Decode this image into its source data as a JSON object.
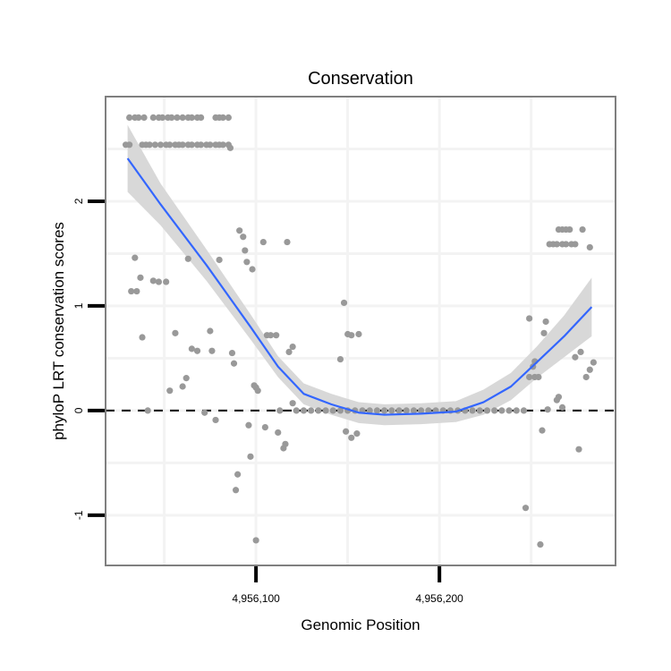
{
  "chart_data": {
    "type": "scatter",
    "title": "Conservation",
    "xlabel": "Genomic Position",
    "ylabel": "phyloP LRT conservation scores",
    "xlim": [
      4956018,
      4956296
    ],
    "ylim": [
      -1.48,
      3.0
    ],
    "x_ticks": [
      {
        "value": 4956100,
        "label": "4,956,100"
      },
      {
        "value": 4956200,
        "label": "4,956,200"
      }
    ],
    "y_ticks": [
      {
        "value": -1,
        "label": "-1"
      },
      {
        "value": 0,
        "label": "0"
      },
      {
        "value": 1,
        "label": "1"
      },
      {
        "value": 2,
        "label": "2"
      }
    ],
    "grid": true,
    "reference_line": {
      "y": 0,
      "style": "dashed"
    },
    "colors": {
      "points": "#999999",
      "fit": "#3366ff",
      "ribbon": "#d6d6d6",
      "border": "#7f7f7f",
      "grid": "#f3f3f3"
    },
    "points": [
      [
        4956031,
        2.8
      ],
      [
        4956034,
        2.8
      ],
      [
        4956036,
        2.8
      ],
      [
        4956039,
        2.8
      ],
      [
        4956044,
        2.8
      ],
      [
        4956047,
        2.8
      ],
      [
        4956049,
        2.8
      ],
      [
        4956052,
        2.8
      ],
      [
        4956054,
        2.8
      ],
      [
        4956057,
        2.8
      ],
      [
        4956060,
        2.8
      ],
      [
        4956063,
        2.8
      ],
      [
        4956065,
        2.8
      ],
      [
        4956068,
        2.8
      ],
      [
        4956070,
        2.8
      ],
      [
        4956078,
        2.8
      ],
      [
        4956080,
        2.8
      ],
      [
        4956082,
        2.8
      ],
      [
        4956085,
        2.8
      ],
      [
        4956029,
        2.54
      ],
      [
        4956031,
        2.54
      ],
      [
        4956038,
        2.54
      ],
      [
        4956040,
        2.54
      ],
      [
        4956042,
        2.54
      ],
      [
        4956045,
        2.54
      ],
      [
        4956048,
        2.54
      ],
      [
        4956051,
        2.54
      ],
      [
        4956053,
        2.54
      ],
      [
        4956056,
        2.54
      ],
      [
        4956058,
        2.54
      ],
      [
        4956060,
        2.54
      ],
      [
        4956063,
        2.54
      ],
      [
        4956065,
        2.54
      ],
      [
        4956068,
        2.54
      ],
      [
        4956070,
        2.54
      ],
      [
        4956073,
        2.54
      ],
      [
        4956075,
        2.54
      ],
      [
        4956078,
        2.54
      ],
      [
        4956080,
        2.54
      ],
      [
        4956082,
        2.54
      ],
      [
        4956085,
        2.54
      ],
      [
        4956086,
        2.51
      ],
      [
        4956034,
        1.46
      ],
      [
        4956037,
        1.27
      ],
      [
        4956032,
        1.14
      ],
      [
        4956035,
        1.14
      ],
      [
        4956044,
        1.24
      ],
      [
        4956047,
        1.23
      ],
      [
        4956051,
        1.23
      ],
      [
        4956038,
        0.7
      ],
      [
        4956041,
        0.0
      ],
      [
        4956056,
        0.74
      ],
      [
        4956063,
        1.45
      ],
      [
        4956080,
        1.44
      ],
      [
        4956075,
        0.76
      ],
      [
        4956053,
        0.19
      ],
      [
        4956060,
        0.23
      ],
      [
        4956062,
        0.31
      ],
      [
        4956065,
        0.59
      ],
      [
        4956068,
        0.57
      ],
      [
        4956076,
        0.57
      ],
      [
        4956072,
        -0.02
      ],
      [
        4956078,
        -0.09
      ],
      [
        4956087,
        0.55
      ],
      [
        4956088,
        0.45
      ],
      [
        4956091,
        1.72
      ],
      [
        4956093,
        1.66
      ],
      [
        4956094,
        1.53
      ],
      [
        4956095,
        1.42
      ],
      [
        4956098,
        1.35
      ],
      [
        4956104,
        1.61
      ],
      [
        4956117,
        1.61
      ],
      [
        4956096,
        -0.14
      ],
      [
        4956100,
        0.22
      ],
      [
        4956101,
        0.19
      ],
      [
        4956099,
        0.24
      ],
      [
        4956105,
        -0.16
      ],
      [
        4956112,
        -0.21
      ],
      [
        4956115,
        -0.36
      ],
      [
        4956116,
        -0.32
      ],
      [
        4956097,
        -0.44
      ],
      [
        4956090,
        -0.61
      ],
      [
        4956089,
        -0.76
      ],
      [
        4956100,
        -1.24
      ],
      [
        4956113,
        0.0
      ],
      [
        4956120,
        0.07
      ],
      [
        4956106,
        0.72
      ],
      [
        4956108,
        0.72
      ],
      [
        4956111,
        0.72
      ],
      [
        4956118,
        0.56
      ],
      [
        4956120,
        0.61
      ],
      [
        4956122,
        0
      ],
      [
        4956126,
        0
      ],
      [
        4956130,
        0
      ],
      [
        4956134,
        0
      ],
      [
        4956138,
        0
      ],
      [
        4956142,
        0
      ],
      [
        4956146,
        0
      ],
      [
        4956150,
        0
      ],
      [
        4956154,
        0
      ],
      [
        4956158,
        0
      ],
      [
        4956162,
        0
      ],
      [
        4956166,
        0
      ],
      [
        4956170,
        0
      ],
      [
        4956174,
        0
      ],
      [
        4956178,
        0
      ],
      [
        4956182,
        0
      ],
      [
        4956186,
        0
      ],
      [
        4956190,
        0
      ],
      [
        4956194,
        0
      ],
      [
        4956198,
        0
      ],
      [
        4956202,
        0
      ],
      [
        4956206,
        0
      ],
      [
        4956210,
        0
      ],
      [
        4956214,
        0
      ],
      [
        4956218,
        0
      ],
      [
        4956222,
        0
      ],
      [
        4956226,
        0
      ],
      [
        4956230,
        0
      ],
      [
        4956234,
        0
      ],
      [
        4956238,
        0
      ],
      [
        4956242,
        0
      ],
      [
        4956246,
        0
      ],
      [
        4956148,
        1.03
      ],
      [
        4956150,
        0.73
      ],
      [
        4956152,
        0.72
      ],
      [
        4956156,
        0.73
      ],
      [
        4956146,
        0.49
      ],
      [
        4956149,
        -0.2
      ],
      [
        4956152,
        -0.26
      ],
      [
        4956155,
        -0.22
      ],
      [
        4956265,
        1.73
      ],
      [
        4956267,
        1.73
      ],
      [
        4956269,
        1.73
      ],
      [
        4956271,
        1.73
      ],
      [
        4956278,
        1.73
      ],
      [
        4956260,
        1.59
      ],
      [
        4956262,
        1.59
      ],
      [
        4956264,
        1.59
      ],
      [
        4956267,
        1.59
      ],
      [
        4956269,
        1.59
      ],
      [
        4956272,
        1.59
      ],
      [
        4956274,
        1.59
      ],
      [
        4956282,
        1.56
      ],
      [
        4956249,
        0.88
      ],
      [
        4956258,
        0.85
      ],
      [
        4956257,
        0.74
      ],
      [
        4956252,
        0.47
      ],
      [
        4956251,
        0.42
      ],
      [
        4956249,
        0.32
      ],
      [
        4956252,
        0.32
      ],
      [
        4956254,
        0.32
      ],
      [
        4956274,
        0.51
      ],
      [
        4956277,
        0.56
      ],
      [
        4956284,
        0.46
      ],
      [
        4956282,
        0.39
      ],
      [
        4956280,
        0.32
      ],
      [
        4956264,
        0.1
      ],
      [
        4956265,
        0.13
      ],
      [
        4956259,
        0.01
      ],
      [
        4956267,
        0.03
      ],
      [
        4956256,
        -0.19
      ],
      [
        4956276,
        -0.37
      ],
      [
        4956247,
        -0.93
      ],
      [
        4956255,
        -1.28
      ]
    ],
    "fit": {
      "x": [
        4956030,
        4956048,
        4956073,
        4956097,
        4956112,
        4956126,
        4956141,
        4956156,
        4956170,
        4956190,
        4956209,
        4956224,
        4956239,
        4956253,
        4956268,
        4956283
      ],
      "y": [
        2.41,
        1.97,
        1.39,
        0.8,
        0.42,
        0.16,
        0.06,
        -0.02,
        -0.04,
        -0.03,
        -0.01,
        0.08,
        0.23,
        0.46,
        0.71,
        0.99
      ],
      "se": [
        0.32,
        0.2,
        0.15,
        0.12,
        0.1,
        0.1,
        0.1,
        0.1,
        0.1,
        0.1,
        0.1,
        0.12,
        0.13,
        0.15,
        0.2,
        0.28
      ]
    }
  }
}
